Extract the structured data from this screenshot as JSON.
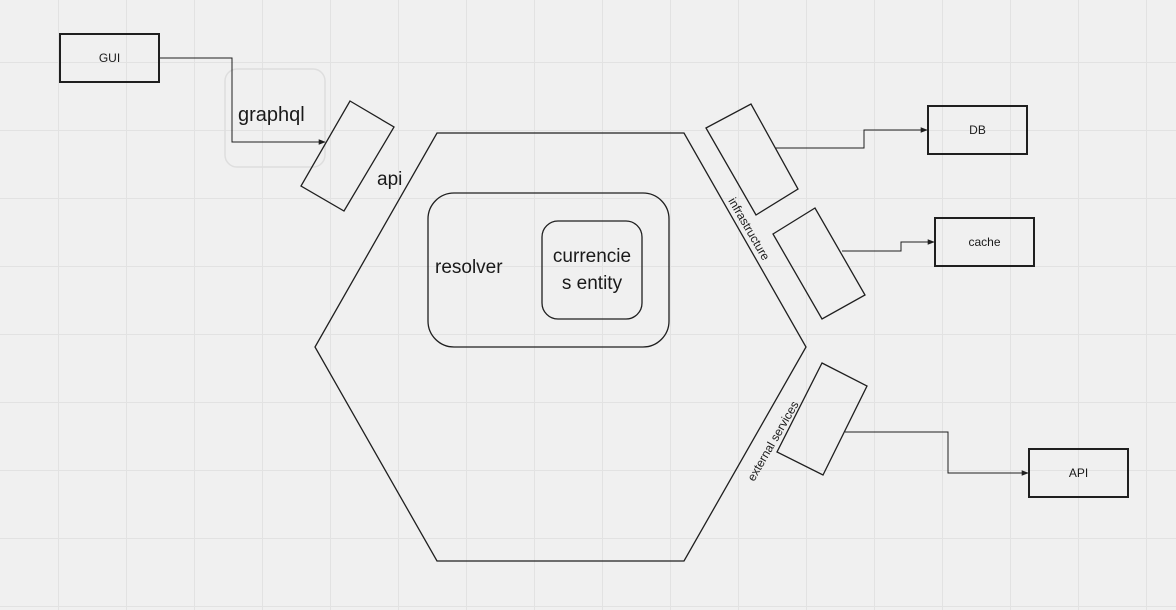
{
  "nodes": {
    "gui": "GUI",
    "db": "DB",
    "cache": "cache",
    "ext_api": "API"
  },
  "labels": {
    "graphql": "graphql",
    "api": "api",
    "infrastructure": "infrastructure",
    "external_services": "external services",
    "resolver": "resolver",
    "entity_line1": "currencie",
    "entity_line2": "s entity"
  }
}
